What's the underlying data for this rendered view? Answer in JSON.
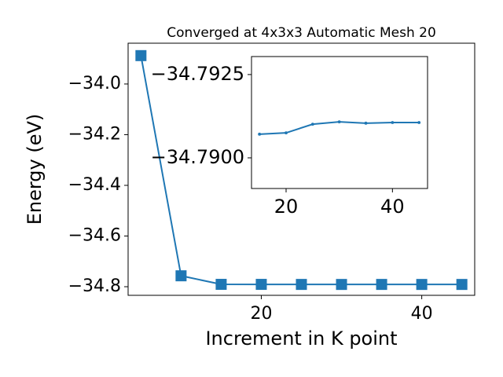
{
  "chart_data": [
    {
      "type": "line",
      "title": "Converged at 4x3x3 Automatic Mesh 20",
      "x_label": "Increment in K point",
      "y_label": "Energy (eV)",
      "x": [
        5,
        10,
        15,
        20,
        25,
        30,
        35,
        40,
        45
      ],
      "series": [
        {
          "color": "#1f77b4",
          "marker": "square",
          "values": [
            -33.888,
            -34.757,
            -34.7907,
            -34.7908,
            -34.791,
            -34.7911,
            -34.791,
            -34.7911,
            -34.7911
          ]
        }
      ],
      "xlim": [
        3.4,
        46.6
      ],
      "xticks": [
        20,
        40
      ],
      "ylim": [
        -34.834,
        -33.839
      ],
      "yticks": [
        {
          "value": -34.8,
          "label": "−34.8"
        },
        {
          "value": -34.6,
          "label": "−34.6"
        },
        {
          "value": -34.4,
          "label": "−34.4"
        },
        {
          "value": -34.2,
          "label": "−34.2"
        },
        {
          "value": -34.0,
          "label": "−34.0"
        }
      ]
    },
    {
      "type": "line",
      "x": [
        15,
        20,
        25,
        30,
        35,
        40,
        45
      ],
      "series": [
        {
          "color": "#1f77b4",
          "marker": "circle",
          "values": [
            -34.79071,
            -34.79075,
            -34.79101,
            -34.79108,
            -34.79104,
            -34.79106,
            -34.79106
          ]
        }
      ],
      "xlim": [
        13.5,
        46.6
      ],
      "xticks": [
        20,
        40
      ],
      "ylim": [
        -34.78908,
        -34.79304
      ],
      "yticks": [
        {
          "value": -34.79,
          "label": "−34.7900"
        },
        {
          "value": -34.7925,
          "label": "−34.7925"
        }
      ]
    }
  ]
}
